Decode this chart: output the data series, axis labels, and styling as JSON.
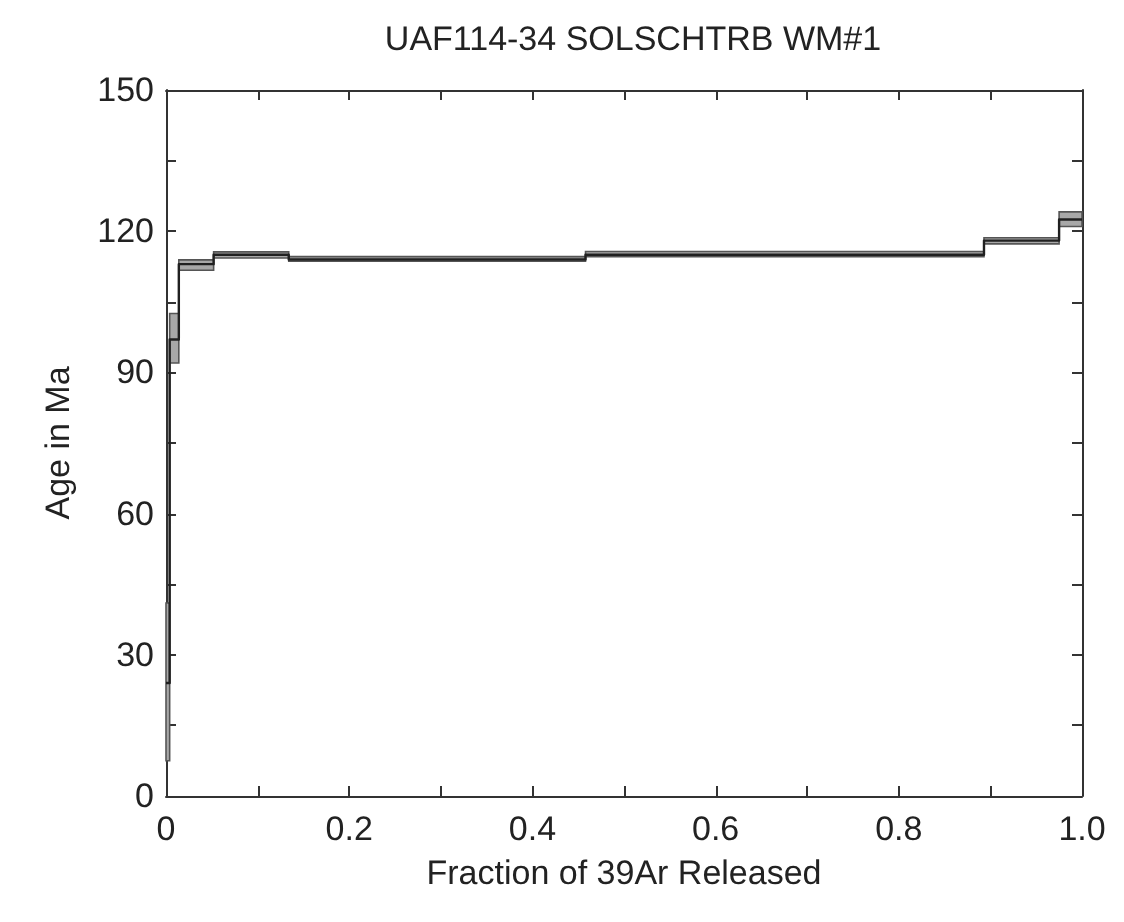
{
  "chart_data": {
    "type": "step",
    "title": "UAF114-34 SOLSCHTRB WM#1",
    "xlabel": "Fraction of 39Ar Released",
    "ylabel": "Age in Ma",
    "series": [
      {
        "color": "#202020",
        "x": [
          0,
          0.004,
          0.014,
          0.052,
          0.134,
          0.228,
          0.338,
          0.458,
          0.573,
          0.669,
          0.789,
          0.893,
          0.975,
          1.0
        ],
        "values": [
          24,
          97,
          113,
          115,
          114,
          114,
          114,
          115,
          115,
          115,
          115,
          118,
          122.5,
          122.5
        ],
        "lower": [
          7.5,
          92,
          111.7,
          114.3,
          113.6,
          113.6,
          113.6,
          114.6,
          114.6,
          114.6,
          114.6,
          117.3,
          121,
          121
        ],
        "upper": [
          41,
          102.5,
          113.9,
          115.6,
          114.6,
          114.6,
          114.6,
          115.7,
          115.7,
          115.7,
          115.7,
          118.6,
          124.1,
          124.1
        ]
      }
    ],
    "xlim": [
      0,
      1
    ],
    "ylim": [
      0,
      150
    ],
    "xticks": [
      0,
      {
        "value": 0.1,
        "label": null
      },
      {
        "value": 0.2,
        "label": "0.2"
      },
      {
        "value": 0.3,
        "label": null
      },
      {
        "value": 0.4,
        "label": "0.4"
      },
      {
        "value": 0.5,
        "label": null
      },
      {
        "value": 0.6,
        "label": "0.6"
      },
      {
        "value": 0.7,
        "label": null
      },
      {
        "value": 0.8,
        "label": "0.8"
      },
      {
        "value": 0.9,
        "label": null
      },
      {
        "value": 1,
        "label": "1.0"
      }
    ],
    "yticks": [
      0,
      {
        "value": 15,
        "label": null
      },
      30,
      {
        "value": 45,
        "label": null
      },
      60,
      {
        "value": 75,
        "label": null
      },
      90,
      {
        "value": 105,
        "label": null
      },
      120,
      {
        "value": 135,
        "label": null
      },
      150
    ],
    "grid": false,
    "marker": "none",
    "line_style": "solid"
  }
}
